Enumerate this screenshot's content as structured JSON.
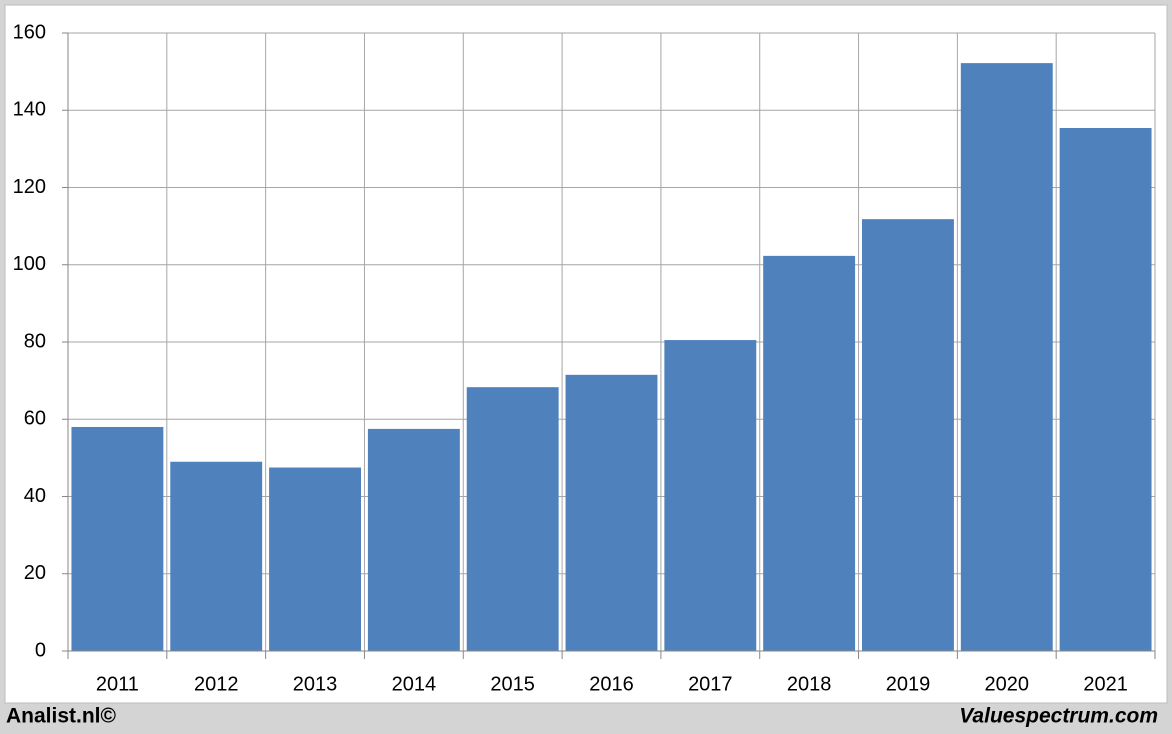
{
  "chart_data": {
    "type": "bar",
    "categories": [
      "2011",
      "2012",
      "2013",
      "2014",
      "2015",
      "2016",
      "2017",
      "2018",
      "2019",
      "2020",
      "2021"
    ],
    "values": [
      58,
      49,
      47.5,
      57.5,
      68.3,
      71.5,
      80.5,
      102.3,
      111.8,
      152.2,
      135.4
    ],
    "color": "#4f81bd",
    "ylim": [
      0,
      160
    ],
    "yticks": [
      0,
      20,
      40,
      60,
      80,
      100,
      120,
      140,
      160
    ],
    "grid": true
  },
  "footer": {
    "left": "Analist.nl©",
    "right": "Valuespectrum.com"
  }
}
